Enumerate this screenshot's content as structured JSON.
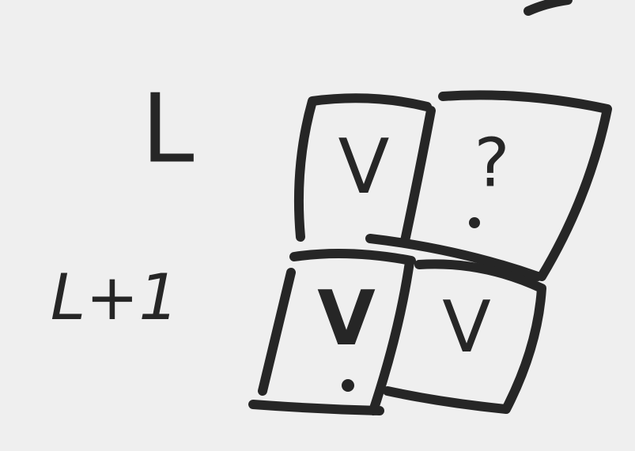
{
  "rows": [
    {
      "label": "L",
      "cells": [
        "V",
        "?"
      ]
    },
    {
      "label": "L+1",
      "cells": [
        "V",
        "V"
      ]
    }
  ]
}
